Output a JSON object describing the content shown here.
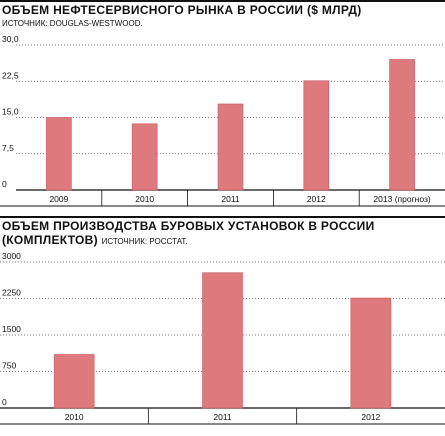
{
  "charts": [
    {
      "title": "ОБЪЕМ НЕФТЕСЕРВИСНОГО РЫНКА В РОССИИ ($ МЛРД)",
      "title_line2": "",
      "source": "ИСТОЧНИК: DOUGLAS-WESTWOOD."
    },
    {
      "title": "ОБЪЕМ ПРОИЗВОДСТВА БУРОВЫХ УСТАНОВОК В РОССИИ",
      "title_line2": "(КОМПЛЕКТОВ)",
      "source": "ИСТОЧНИК: РОССТАТ."
    }
  ],
  "colors": {
    "bar": "#de7a7d",
    "bar_stroke": "#c9585c",
    "grid": "#555555",
    "text": "#111111"
  },
  "chart_data": [
    {
      "type": "bar",
      "title": "ОБЪЕМ НЕФТЕСЕРВИСНОГО РЫНКА В РОССИИ ($ МЛРД)",
      "categories": [
        "2009",
        "2010",
        "2011",
        "2012",
        "2013 (прогноз)"
      ],
      "values": [
        15.0,
        13.7,
        17.8,
        22.6,
        27.0
      ],
      "ylim": [
        0,
        30
      ],
      "yticks": [
        "0",
        "7,5",
        "15,0",
        "22,5",
        "30,0"
      ],
      "ytick_values": [
        0,
        7.5,
        15,
        22.5,
        30
      ],
      "grid": true
    },
    {
      "type": "bar",
      "title": "ОБЪЕМ ПРОИЗВОДСТВА БУРОВЫХ УСТАНОВОК В РОССИИ (КОМПЛЕКТОВ)",
      "categories": [
        "2010",
        "2011",
        "2012"
      ],
      "values": [
        1100,
        2780,
        2260
      ],
      "ylim": [
        0,
        3000
      ],
      "yticks": [
        "0",
        "750",
        "1500",
        "2250",
        "3000"
      ],
      "ytick_values": [
        0,
        750,
        1500,
        2250,
        3000
      ],
      "grid": true
    }
  ]
}
